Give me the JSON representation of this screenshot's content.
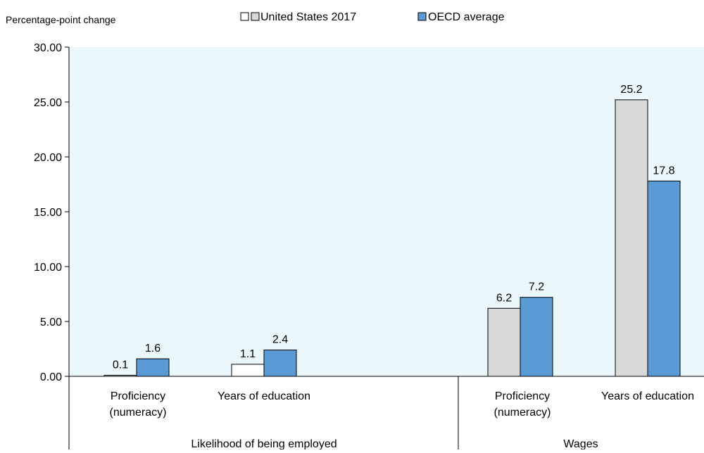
{
  "chart_data": {
    "type": "bar",
    "ylabel": "Percentage-point  change",
    "ylim": [
      0,
      30
    ],
    "yticks": [
      "0.00",
      "5.00",
      "10.00",
      "15.00",
      "20.00",
      "25.00",
      "30.00"
    ],
    "grid": false,
    "legend_position": "top",
    "groups": [
      {
        "label": "Likelihood of being employed",
        "categories": [
          {
            "label_lines": [
              "Proficiency",
              "(numeracy)"
            ]
          },
          {
            "label_lines": [
              "Years of education"
            ]
          }
        ]
      },
      {
        "label": "Wages",
        "categories": [
          {
            "label_lines": [
              "Proficiency",
              "(numeracy)"
            ]
          },
          {
            "label_lines": [
              "Years of education"
            ]
          }
        ]
      }
    ],
    "series": [
      {
        "name": "United States 2017",
        "values": [
          0.1,
          1.1,
          6.2,
          25.2
        ],
        "labels": [
          "0.1",
          "1.1",
          "6.2",
          "25.2"
        ],
        "fills": [
          "#d9d9d9",
          "#ffffff",
          "#d9d9d9",
          "#d9d9d9"
        ]
      },
      {
        "name": "OECD average",
        "values": [
          1.6,
          2.4,
          7.2,
          17.8
        ],
        "labels": [
          "1.6",
          "2.4",
          "7.2",
          "17.8"
        ],
        "fills": [
          "#5b9bd5",
          "#5b9bd5",
          "#5b9bd5",
          "#5b9bd5"
        ]
      }
    ],
    "legend": {
      "items": [
        {
          "label": "United States 2017",
          "swatches": [
            "#ffffff",
            "#d9d9d9"
          ]
        },
        {
          "label": "OECD average",
          "swatches": [
            "#5b9bd5"
          ]
        }
      ]
    },
    "colors": {
      "plot_background": "#eaf7fb",
      "oecd": "#5b9bd5",
      "us_significant": "#d9d9d9",
      "us_not_significant": "#ffffff"
    }
  }
}
